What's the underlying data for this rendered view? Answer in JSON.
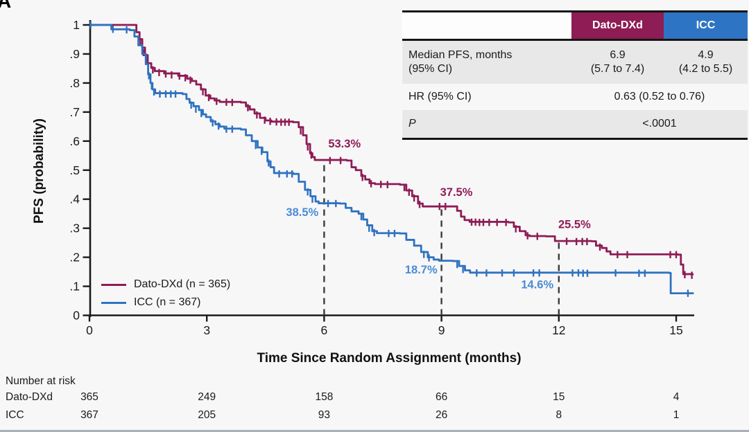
{
  "figure": {
    "panel_label": "A"
  },
  "colors": {
    "dato": "#8e1c55",
    "icc": "#2e74c4",
    "icc_annotation": "#4b8bd5",
    "axis": "#1a1a1a",
    "dash_line": "#3b3b3b",
    "table_gray_row": "#e8e8e8",
    "background": "#f7f7f8"
  },
  "stats_table": {
    "header": {
      "dato": "Dato-DXd",
      "icc": "ICC"
    },
    "median_row": {
      "label_line1": "Median PFS, months",
      "label_line2": "(95% CI)",
      "dato_line1": "6.9",
      "dato_line2": "(5.7 to 7.4)",
      "icc_line1": "4.9",
      "icc_line2": "(4.2 to 5.5)"
    },
    "hr_row": {
      "label": "HR (95% CI)",
      "value": "0.63 (0.52 to 0.76)"
    },
    "p_row": {
      "label": "P",
      "value": "<.0001"
    }
  },
  "legend": {
    "items": [
      {
        "label": "Dato-DXd (n = 365)",
        "color": "#8e1c55"
      },
      {
        "label": "ICC (n = 367)",
        "color": "#2e74c4"
      }
    ]
  },
  "axes": {
    "y_title": "PFS (probability)",
    "x_title": "Time Since Random Assignment (months)"
  },
  "risk_table": {
    "title": "Number at risk",
    "times": [
      0,
      3,
      6,
      9,
      12,
      15
    ],
    "rows": [
      {
        "label": "Dato-DXd",
        "values": [
          "365",
          "249",
          "158",
          "66",
          "15",
          "4"
        ]
      },
      {
        "label": "ICC",
        "values": [
          "367",
          "205",
          "93",
          "26",
          "8",
          "1"
        ]
      }
    ]
  },
  "chart_data": {
    "type": "line",
    "subtype": "kaplan-meier-step",
    "title": "",
    "xlabel": "Time Since Random Assignment (months)",
    "ylabel": "PFS (probability)",
    "xlim": [
      0,
      15.5
    ],
    "ylim": [
      0,
      1
    ],
    "grid": false,
    "x_ticks": [
      0,
      3,
      6,
      9,
      12,
      15
    ],
    "y_ticks": [
      0,
      0.1,
      0.2,
      0.3,
      0.4,
      0.5,
      0.6,
      0.7,
      0.8,
      0.9,
      1
    ],
    "y_tick_labels": [
      "0",
      ".1",
      ".2",
      ".3",
      ".4",
      ".5",
      ".6",
      ".7",
      ".8",
      ".9",
      "1"
    ],
    "reference_lines": [
      {
        "t": 6,
        "top": 0.533
      },
      {
        "t": 9,
        "top": 0.375
      },
      {
        "t": 12,
        "top": 0.255
      }
    ],
    "annotations": [
      {
        "text": "53.3%",
        "t": 6.52,
        "p": 0.578,
        "color": "#8e1c55"
      },
      {
        "text": "38.5%",
        "t": 5.44,
        "p": 0.342,
        "color": "#4b8bd5"
      },
      {
        "text": "37.5%",
        "t": 9.38,
        "p": 0.411,
        "color": "#8e1c55"
      },
      {
        "text": "18.7%",
        "t": 8.48,
        "p": 0.144,
        "color": "#4b8bd5"
      },
      {
        "text": "25.5%",
        "t": 12.4,
        "p": 0.3,
        "color": "#8e1c55"
      },
      {
        "text": "14.6%",
        "t": 11.45,
        "p": 0.093,
        "color": "#4b8bd5"
      }
    ],
    "series": [
      {
        "name": "Dato-DXd (n = 365)",
        "color": "#8e1c55",
        "landmarks": {
          "6mo": 0.533,
          "9mo": 0.375,
          "12mo": 0.255
        },
        "median_months": 6.9,
        "points": [
          [
            0,
            1
          ],
          [
            1.13,
            1
          ],
          [
            1.2,
            0.975
          ],
          [
            1.28,
            0.951
          ],
          [
            1.35,
            0.922
          ],
          [
            1.42,
            0.896
          ],
          [
            1.49,
            0.868
          ],
          [
            1.58,
            0.852
          ],
          [
            1.67,
            0.841
          ],
          [
            1.91,
            0.833
          ],
          [
            2.27,
            0.825
          ],
          [
            2.5,
            0.815
          ],
          [
            2.62,
            0.807
          ],
          [
            2.73,
            0.795
          ],
          [
            2.85,
            0.778
          ],
          [
            2.97,
            0.757
          ],
          [
            3.09,
            0.747
          ],
          [
            3.2,
            0.74
          ],
          [
            3.33,
            0.735
          ],
          [
            3.87,
            0.733
          ],
          [
            4.0,
            0.72
          ],
          [
            4.1,
            0.709
          ],
          [
            4.22,
            0.695
          ],
          [
            4.36,
            0.68
          ],
          [
            4.5,
            0.671
          ],
          [
            4.65,
            0.667
          ],
          [
            5.21,
            0.665
          ],
          [
            5.35,
            0.648
          ],
          [
            5.46,
            0.62
          ],
          [
            5.55,
            0.59
          ],
          [
            5.64,
            0.558
          ],
          [
            5.7,
            0.545
          ],
          [
            5.76,
            0.535
          ],
          [
            6.58,
            0.533
          ],
          [
            6.7,
            0.51
          ],
          [
            6.81,
            0.5
          ],
          [
            6.95,
            0.48
          ],
          [
            7.05,
            0.468
          ],
          [
            7.16,
            0.455
          ],
          [
            7.3,
            0.452
          ],
          [
            7.94,
            0.45
          ],
          [
            8.1,
            0.43
          ],
          [
            8.25,
            0.41
          ],
          [
            8.4,
            0.385
          ],
          [
            8.52,
            0.375
          ],
          [
            9.29,
            0.375
          ],
          [
            9.4,
            0.36
          ],
          [
            9.5,
            0.34
          ],
          [
            9.59,
            0.328
          ],
          [
            9.72,
            0.322
          ],
          [
            10.71,
            0.32
          ],
          [
            10.85,
            0.305
          ],
          [
            11.0,
            0.29
          ],
          [
            11.15,
            0.276
          ],
          [
            11.25,
            0.273
          ],
          [
            11.67,
            0.272
          ],
          [
            11.9,
            0.256
          ],
          [
            12.84,
            0.255
          ],
          [
            12.95,
            0.24
          ],
          [
            13.1,
            0.232
          ],
          [
            13.22,
            0.22
          ],
          [
            13.32,
            0.21
          ],
          [
            15.04,
            0.209
          ],
          [
            15.12,
            0.175
          ],
          [
            15.18,
            0.142
          ],
          [
            15.42,
            0.138
          ]
        ],
        "censors": [
          [
            1.3,
            0.94
          ],
          [
            1.38,
            0.905
          ],
          [
            1.46,
            0.878
          ],
          [
            1.62,
            0.845
          ],
          [
            1.78,
            0.836
          ],
          [
            1.95,
            0.831
          ],
          [
            2.1,
            0.828
          ],
          [
            2.3,
            0.824
          ],
          [
            2.45,
            0.818
          ],
          [
            2.58,
            0.81
          ],
          [
            2.9,
            0.77
          ],
          [
            3.05,
            0.75
          ],
          [
            3.25,
            0.737
          ],
          [
            3.5,
            0.734
          ],
          [
            3.65,
            0.733
          ],
          [
            4.05,
            0.715
          ],
          [
            4.28,
            0.69
          ],
          [
            4.48,
            0.672
          ],
          [
            4.62,
            0.668
          ],
          [
            4.78,
            0.666
          ],
          [
            4.9,
            0.665
          ],
          [
            5.0,
            0.665
          ],
          [
            5.1,
            0.665
          ],
          [
            5.4,
            0.635
          ],
          [
            5.58,
            0.58
          ],
          [
            5.67,
            0.552
          ],
          [
            6.15,
            0.533
          ],
          [
            6.42,
            0.533
          ],
          [
            6.98,
            0.475
          ],
          [
            7.2,
            0.453
          ],
          [
            7.45,
            0.451
          ],
          [
            7.62,
            0.45
          ],
          [
            8.05,
            0.44
          ],
          [
            8.17,
            0.424
          ],
          [
            8.3,
            0.404
          ],
          [
            8.44,
            0.382
          ],
          [
            8.95,
            0.375
          ],
          [
            9.1,
            0.375
          ],
          [
            9.77,
            0.321
          ],
          [
            9.87,
            0.321
          ],
          [
            9.97,
            0.32
          ],
          [
            10.07,
            0.32
          ],
          [
            10.22,
            0.32
          ],
          [
            10.42,
            0.32
          ],
          [
            10.65,
            0.32
          ],
          [
            10.9,
            0.298
          ],
          [
            11.2,
            0.274
          ],
          [
            11.45,
            0.272
          ],
          [
            12.2,
            0.255
          ],
          [
            12.45,
            0.254
          ],
          [
            12.6,
            0.254
          ],
          [
            12.72,
            0.254
          ],
          [
            13.05,
            0.235
          ],
          [
            13.5,
            0.209
          ],
          [
            13.75,
            0.209
          ],
          [
            14.85,
            0.209
          ],
          [
            15.0,
            0.209
          ],
          [
            15.22,
            0.14
          ],
          [
            15.4,
            0.138
          ]
        ]
      },
      {
        "name": "ICC (n = 367)",
        "color": "#2f72c0",
        "landmarks": {
          "6mo": 0.385,
          "9mo": 0.187,
          "12mo": 0.146
        },
        "median_months": 4.9,
        "points": [
          [
            0,
            1
          ],
          [
            0.5,
            1
          ],
          [
            0.56,
            0.985
          ],
          [
            1.03,
            0.982
          ],
          [
            1.15,
            0.96
          ],
          [
            1.25,
            0.93
          ],
          [
            1.35,
            0.9
          ],
          [
            1.44,
            0.865
          ],
          [
            1.5,
            0.83
          ],
          [
            1.56,
            0.8
          ],
          [
            1.61,
            0.778
          ],
          [
            1.68,
            0.765
          ],
          [
            2.38,
            0.762
          ],
          [
            2.48,
            0.745
          ],
          [
            2.56,
            0.732
          ],
          [
            2.66,
            0.72
          ],
          [
            2.8,
            0.707
          ],
          [
            2.9,
            0.692
          ],
          [
            2.98,
            0.683
          ],
          [
            3.1,
            0.668
          ],
          [
            3.22,
            0.658
          ],
          [
            3.33,
            0.65
          ],
          [
            3.45,
            0.643
          ],
          [
            3.87,
            0.64
          ],
          [
            4.0,
            0.62
          ],
          [
            4.15,
            0.6
          ],
          [
            4.3,
            0.578
          ],
          [
            4.42,
            0.562
          ],
          [
            4.55,
            0.53
          ],
          [
            4.63,
            0.51
          ],
          [
            4.72,
            0.49
          ],
          [
            5.21,
            0.487
          ],
          [
            5.35,
            0.46
          ],
          [
            5.51,
            0.432
          ],
          [
            5.65,
            0.41
          ],
          [
            5.78,
            0.392
          ],
          [
            5.86,
            0.386
          ],
          [
            6.4,
            0.385
          ],
          [
            6.55,
            0.37
          ],
          [
            6.7,
            0.358
          ],
          [
            6.88,
            0.35
          ],
          [
            7.0,
            0.33
          ],
          [
            7.1,
            0.31
          ],
          [
            7.23,
            0.29
          ],
          [
            7.35,
            0.283
          ],
          [
            7.94,
            0.282
          ],
          [
            8.1,
            0.26
          ],
          [
            8.3,
            0.24
          ],
          [
            8.48,
            0.218
          ],
          [
            8.65,
            0.2
          ],
          [
            8.8,
            0.192
          ],
          [
            8.94,
            0.188
          ],
          [
            9.29,
            0.187
          ],
          [
            9.45,
            0.17
          ],
          [
            9.6,
            0.155
          ],
          [
            9.73,
            0.147
          ],
          [
            14.82,
            0.146
          ],
          [
            14.86,
            0.076
          ],
          [
            15.45,
            0.076
          ]
        ],
        "censors": [
          [
            0.03,
            1
          ],
          [
            0.6,
            0.985
          ],
          [
            0.95,
            0.983
          ],
          [
            1.52,
            0.825
          ],
          [
            1.59,
            0.79
          ],
          [
            1.65,
            0.769
          ],
          [
            1.8,
            0.762
          ],
          [
            1.95,
            0.762
          ],
          [
            2.08,
            0.762
          ],
          [
            2.2,
            0.762
          ],
          [
            2.6,
            0.724
          ],
          [
            2.72,
            0.71
          ],
          [
            2.86,
            0.695
          ],
          [
            3.15,
            0.663
          ],
          [
            3.3,
            0.652
          ],
          [
            3.5,
            0.641
          ],
          [
            3.65,
            0.641
          ],
          [
            4.25,
            0.585
          ],
          [
            4.4,
            0.565
          ],
          [
            4.58,
            0.525
          ],
          [
            4.85,
            0.487
          ],
          [
            5.05,
            0.487
          ],
          [
            5.18,
            0.487
          ],
          [
            5.58,
            0.425
          ],
          [
            5.7,
            0.4
          ],
          [
            6.1,
            0.385
          ],
          [
            6.3,
            0.385
          ],
          [
            6.95,
            0.34
          ],
          [
            7.15,
            0.3
          ],
          [
            7.28,
            0.285
          ],
          [
            7.65,
            0.282
          ],
          [
            7.8,
            0.282
          ],
          [
            8.55,
            0.21
          ],
          [
            8.68,
            0.198
          ],
          [
            9.4,
            0.175
          ],
          [
            9.55,
            0.158
          ],
          [
            9.9,
            0.146
          ],
          [
            10.15,
            0.146
          ],
          [
            10.55,
            0.146
          ],
          [
            10.85,
            0.146
          ],
          [
            11.35,
            0.146
          ],
          [
            11.5,
            0.146
          ],
          [
            12.35,
            0.146
          ],
          [
            12.5,
            0.146
          ],
          [
            12.62,
            0.145
          ],
          [
            12.73,
            0.145
          ],
          [
            13.45,
            0.146
          ],
          [
            14.05,
            0.145
          ],
          [
            14.2,
            0.145
          ],
          [
            15.3,
            0.076
          ]
        ]
      }
    ]
  }
}
